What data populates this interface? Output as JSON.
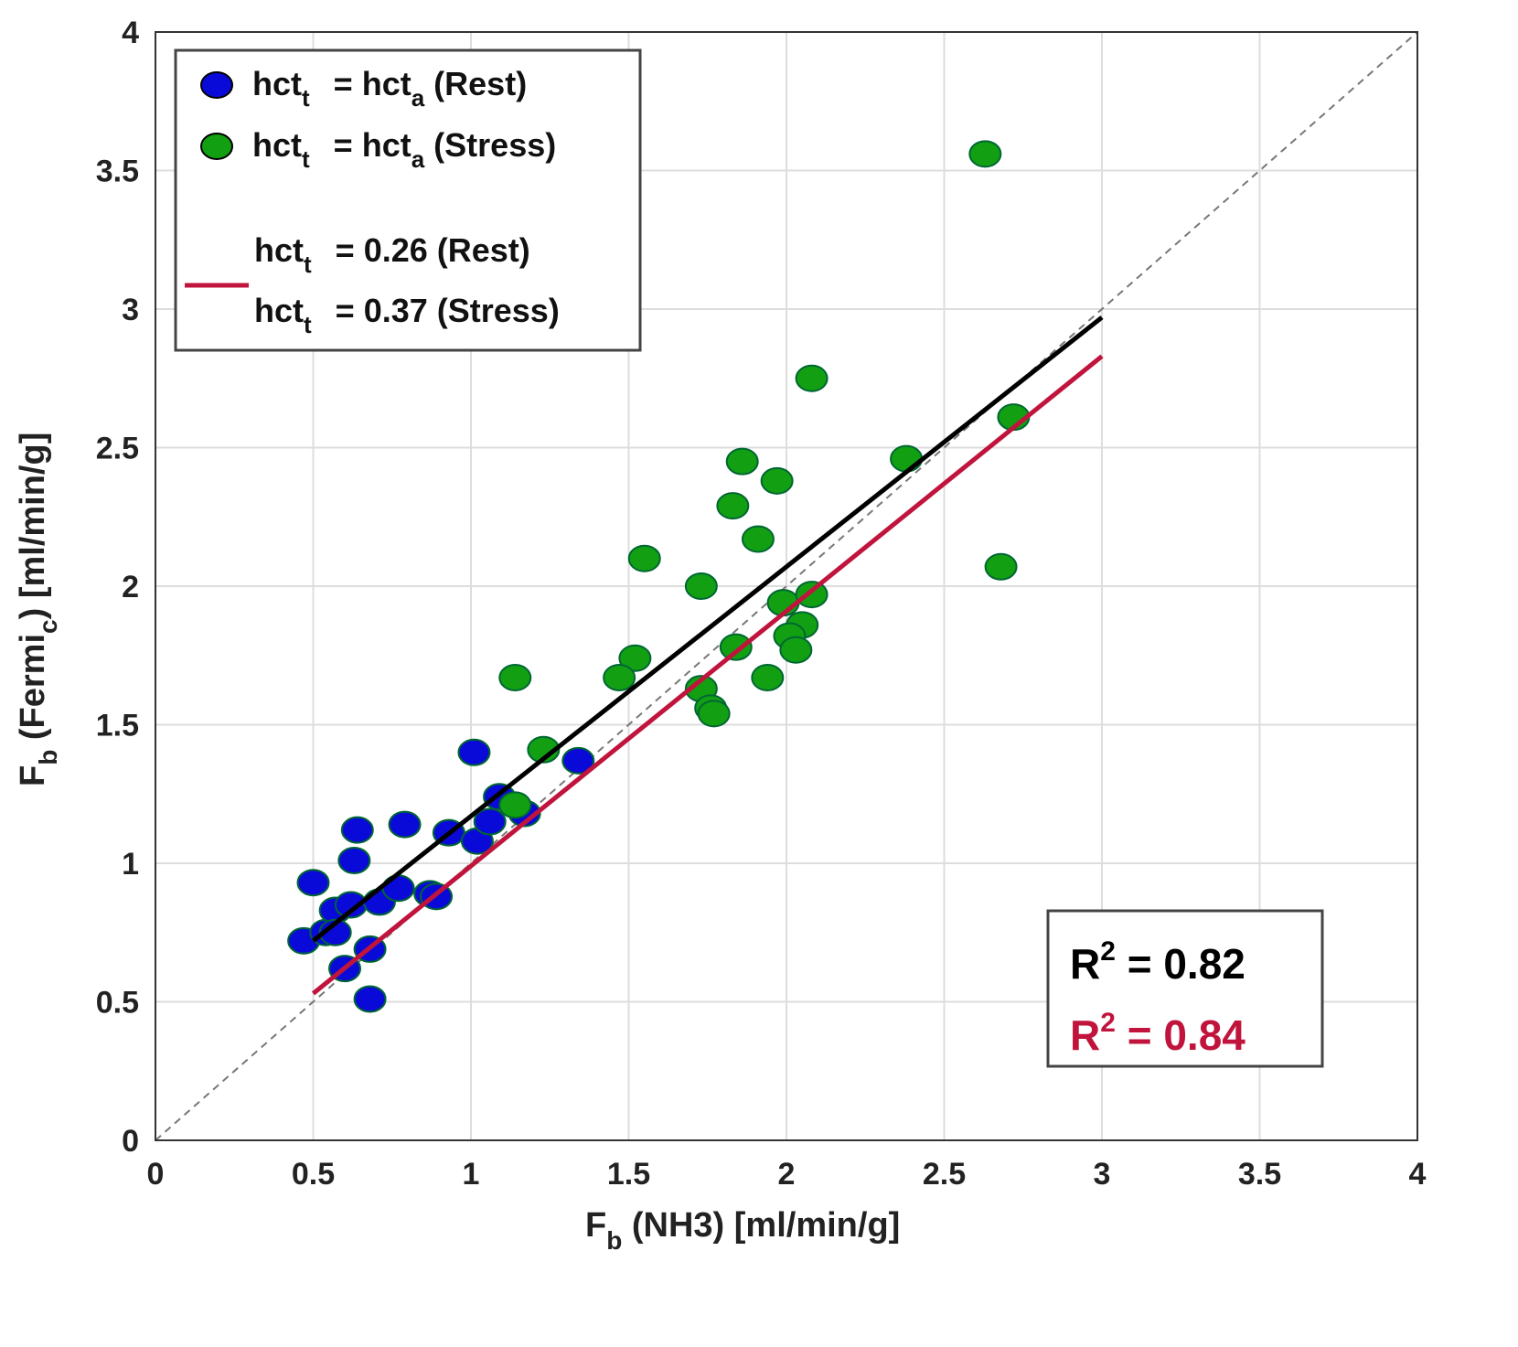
{
  "chart_data": {
    "type": "scatter",
    "xlabel": {
      "main": "F",
      "sub": "b",
      "rest": " (NH3) [ml/min/g]"
    },
    "ylabel": {
      "main": "F",
      "sub": "b",
      "mid": " (Fermi",
      "sub2": "c",
      "rest": ") [ml/min/g]"
    },
    "xlim": [
      0,
      4
    ],
    "ylim": [
      0,
      4
    ],
    "xticks": [
      "0",
      "0.5",
      "1",
      "1.5",
      "2",
      "2.5",
      "3",
      "3.5",
      "4"
    ],
    "yticks": [
      "0",
      "0.5",
      "1",
      "1.5",
      "2",
      "2.5",
      "3",
      "3.5",
      "4"
    ],
    "grid": true,
    "identity_line": {
      "style": "dashed",
      "color": "#777777"
    },
    "legend_position": "top-left",
    "series": [
      {
        "legend": {
          "a": "hct",
          "a_sub": "t",
          "b": " = hct",
          "b_sub": "a",
          "c": " (Rest)"
        },
        "color": "#0a0ad8",
        "points": [
          [
            0.47,
            0.72
          ],
          [
            0.5,
            0.93
          ],
          [
            0.54,
            0.75
          ],
          [
            0.57,
            0.83
          ],
          [
            0.57,
            0.75
          ],
          [
            0.6,
            0.62
          ],
          [
            0.62,
            0.85
          ],
          [
            0.63,
            1.01
          ],
          [
            0.64,
            1.12
          ],
          [
            0.68,
            0.51
          ],
          [
            0.68,
            0.69
          ],
          [
            0.71,
            0.86
          ],
          [
            0.77,
            0.91
          ],
          [
            0.79,
            1.14
          ],
          [
            0.87,
            0.89
          ],
          [
            0.89,
            0.88
          ],
          [
            0.93,
            1.11
          ],
          [
            1.01,
            1.4
          ],
          [
            1.02,
            1.08
          ],
          [
            1.06,
            1.15
          ],
          [
            1.09,
            1.24
          ],
          [
            1.17,
            1.18
          ],
          [
            1.34,
            1.37
          ]
        ]
      },
      {
        "legend": {
          "a": "hct",
          "a_sub": "t",
          "b": " = hct",
          "b_sub": "a",
          "c": " (Stress)"
        },
        "color": "#12a012",
        "points": [
          [
            2.63,
            3.56
          ],
          [
            2.08,
            2.75
          ],
          [
            2.72,
            2.61
          ],
          [
            2.38,
            2.46
          ],
          [
            1.86,
            2.45
          ],
          [
            1.97,
            2.38
          ],
          [
            1.83,
            2.29
          ],
          [
            1.91,
            2.17
          ],
          [
            1.55,
            2.1
          ],
          [
            1.73,
            2.0
          ],
          [
            2.68,
            2.07
          ],
          [
            1.99,
            1.94
          ],
          [
            2.08,
            1.97
          ],
          [
            2.05,
            1.86
          ],
          [
            2.01,
            1.82
          ],
          [
            2.03,
            1.77
          ],
          [
            1.84,
            1.78
          ],
          [
            1.52,
            1.74
          ],
          [
            1.47,
            1.67
          ],
          [
            1.14,
            1.67
          ],
          [
            1.94,
            1.67
          ],
          [
            1.73,
            1.63
          ],
          [
            1.76,
            1.56
          ],
          [
            1.77,
            1.54
          ],
          [
            1.23,
            1.41
          ],
          [
            1.14,
            1.21
          ]
        ]
      }
    ],
    "fit_lines": [
      {
        "color": "#000000",
        "from": [
          0.5,
          0.72
        ],
        "to": [
          3.0,
          2.97
        ],
        "r2_label": {
          "a": "R",
          "sup": "2",
          "b": " = 0.82"
        }
      },
      {
        "color": "#c0143c",
        "from": [
          0.5,
          0.53
        ],
        "to": [
          3.0,
          2.83
        ],
        "r2_label": {
          "a": "R",
          "sup": "2",
          "b": " = 0.84"
        },
        "legend": [
          {
            "a": "hct",
            "a_sub": "t",
            "b": " = 0.26 (Rest)"
          },
          {
            "a": "hct",
            "a_sub": "t",
            "b": " = 0.37 (Stress)"
          }
        ]
      }
    ]
  }
}
